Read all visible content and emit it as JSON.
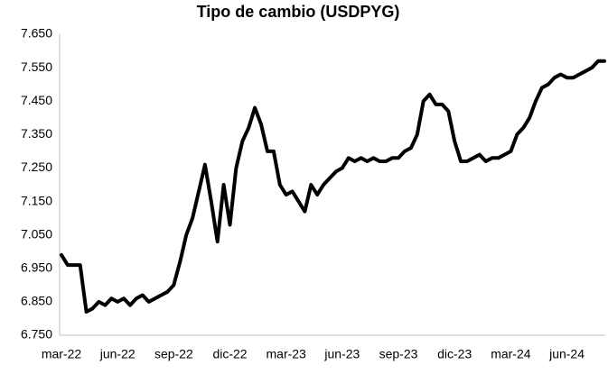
{
  "chart_data": {
    "type": "line",
    "title": "Tipo de cambio (USDPYG)",
    "categories": [
      "mar-22",
      null,
      null,
      null,
      null,
      null,
      null,
      null,
      null,
      "jun-22",
      null,
      null,
      null,
      null,
      null,
      null,
      null,
      null,
      "sep-22",
      null,
      null,
      null,
      null,
      null,
      null,
      null,
      null,
      "dic-22",
      null,
      null,
      null,
      null,
      null,
      null,
      null,
      null,
      "mar-23",
      null,
      null,
      null,
      null,
      null,
      null,
      null,
      null,
      "jun-23",
      null,
      null,
      null,
      null,
      null,
      null,
      null,
      null,
      "sep-23",
      null,
      null,
      null,
      null,
      null,
      null,
      null,
      null,
      "dic-23",
      null,
      null,
      null,
      null,
      null,
      null,
      null,
      null,
      "mar-24",
      null,
      null,
      null,
      null,
      null,
      null,
      null,
      null,
      "jun-24",
      null,
      null,
      null,
      null,
      null,
      null
    ],
    "series": [
      {
        "name": "USDPYG",
        "color": "#000000",
        "values": [
          6.99,
          6.96,
          6.96,
          6.96,
          6.82,
          6.83,
          6.85,
          6.84,
          6.86,
          6.85,
          6.86,
          6.84,
          6.86,
          6.87,
          6.85,
          6.86,
          6.87,
          6.88,
          6.9,
          6.97,
          7.05,
          7.1,
          7.18,
          7.26,
          7.15,
          7.03,
          7.2,
          7.08,
          7.25,
          7.33,
          7.37,
          7.43,
          7.38,
          7.3,
          7.3,
          7.2,
          7.17,
          7.18,
          7.15,
          7.12,
          7.2,
          7.17,
          7.2,
          7.22,
          7.24,
          7.25,
          7.28,
          7.27,
          7.28,
          7.27,
          7.28,
          7.27,
          7.27,
          7.28,
          7.28,
          7.3,
          7.31,
          7.35,
          7.45,
          7.47,
          7.44,
          7.44,
          7.42,
          7.33,
          7.27,
          7.27,
          7.28,
          7.29,
          7.27,
          7.28,
          7.28,
          7.29,
          7.3,
          7.35,
          7.37,
          7.4,
          7.45,
          7.49,
          7.5,
          7.52,
          7.53,
          7.52,
          7.52,
          7.53,
          7.54,
          7.55,
          7.57,
          7.57
        ]
      }
    ],
    "ylim": [
      6.75,
      7.65
    ],
    "yticks": [
      {
        "value": 6.75,
        "label": "6.750"
      },
      {
        "value": 6.85,
        "label": "6.850"
      },
      {
        "value": 6.95,
        "label": "6.950"
      },
      {
        "value": 7.05,
        "label": "7.050"
      },
      {
        "value": 7.15,
        "label": "7.150"
      },
      {
        "value": 7.25,
        "label": "7.250"
      },
      {
        "value": 7.35,
        "label": "7.350"
      },
      {
        "value": 7.45,
        "label": "7.450"
      },
      {
        "value": 7.55,
        "label": "7.550"
      },
      {
        "value": 7.65,
        "label": "7.650"
      }
    ],
    "grid": false
  }
}
